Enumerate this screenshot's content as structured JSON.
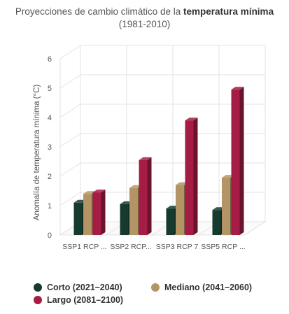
{
  "title_prefix": "Proyecciones de cambio climático de la ",
  "title_bold": "temperatura mínima",
  "subtitle": "(1981-2010)",
  "colors": {
    "corto": "#163a2e",
    "mediano": "#b39565",
    "largo": "#a51d44"
  },
  "chart_data": {
    "type": "bar",
    "title": "Proyecciones de cambio climático de la temperatura mínima",
    "subtitle": "(1981-2010)",
    "ylabel": "Anomalía de temperatura mínima (°C)",
    "xlabel": "",
    "ylim": [
      0,
      6
    ],
    "yticks": [
      "0",
      "1",
      "2",
      "3",
      "4",
      "5",
      "6"
    ],
    "categories": [
      "SSP1 RCP ...",
      "SSP2 RCP...",
      "SSP3 RCP 7",
      "SSP5 RCP ..."
    ],
    "series": [
      {
        "name": "Corto (2021–2040)",
        "values": [
          1.1,
          1.05,
          0.9,
          0.85
        ]
      },
      {
        "name": "Mediano (2041–2060)",
        "values": [
          1.4,
          1.6,
          1.7,
          1.95
        ]
      },
      {
        "name": "Largo (2081–2100)",
        "values": [
          1.45,
          2.55,
          3.9,
          4.95
        ]
      }
    ],
    "grid": true,
    "legend_position": "bottom"
  }
}
